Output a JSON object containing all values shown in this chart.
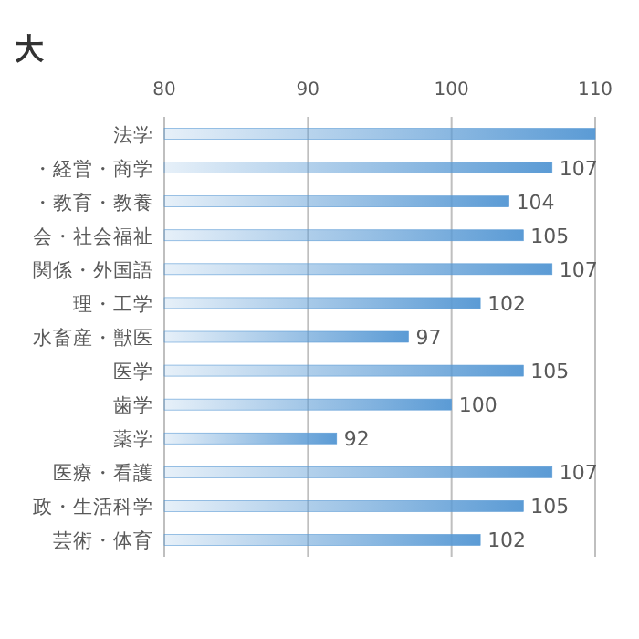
{
  "chart_data": {
    "type": "bar",
    "orientation": "horizontal",
    "title": "大",
    "categories": [
      "法学",
      "・経営・商学",
      "・教育・教養",
      "会・社会福祉",
      "関係・外国語",
      "理・工学",
      "水畜産・獣医",
      "医学",
      "歯学",
      "薬学",
      "医療・看護",
      "政・生活科学",
      "芸術・体育"
    ],
    "values": [
      110,
      107,
      104,
      105,
      107,
      102,
      97,
      105,
      100,
      92,
      107,
      105,
      102
    ],
    "value_labels": [
      null,
      "107",
      "104",
      "105",
      "107",
      "102",
      "97",
      "105",
      "100",
      "92",
      "107",
      "105",
      "102"
    ],
    "color": "#5b9bd5",
    "xlim": [
      80,
      110
    ],
    "xticks": [
      80,
      90,
      100,
      110
    ],
    "grid": "x"
  }
}
